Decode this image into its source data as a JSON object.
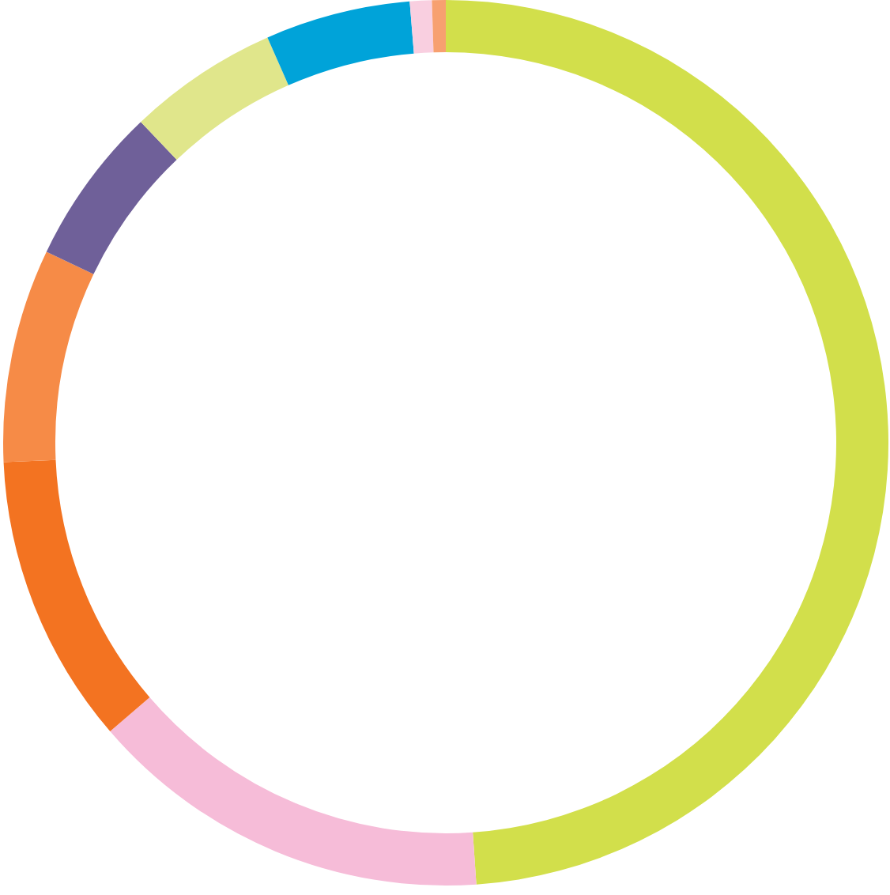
{
  "chart_data": {
    "type": "donut",
    "categories": [
      null,
      null,
      null,
      null,
      null,
      null,
      null,
      null,
      null
    ],
    "values": [
      48.9,
      14.8,
      10.6,
      7.8,
      5.8,
      5.5,
      5.3,
      0.8,
      0.5
    ],
    "colors": [
      "#d2df4b",
      "#f6bcd8",
      "#f37321",
      "#f68b47",
      "#6f6099",
      "#e0e68b",
      "#00a3d9",
      "#f9cfe0",
      "#f7a070"
    ]
  }
}
